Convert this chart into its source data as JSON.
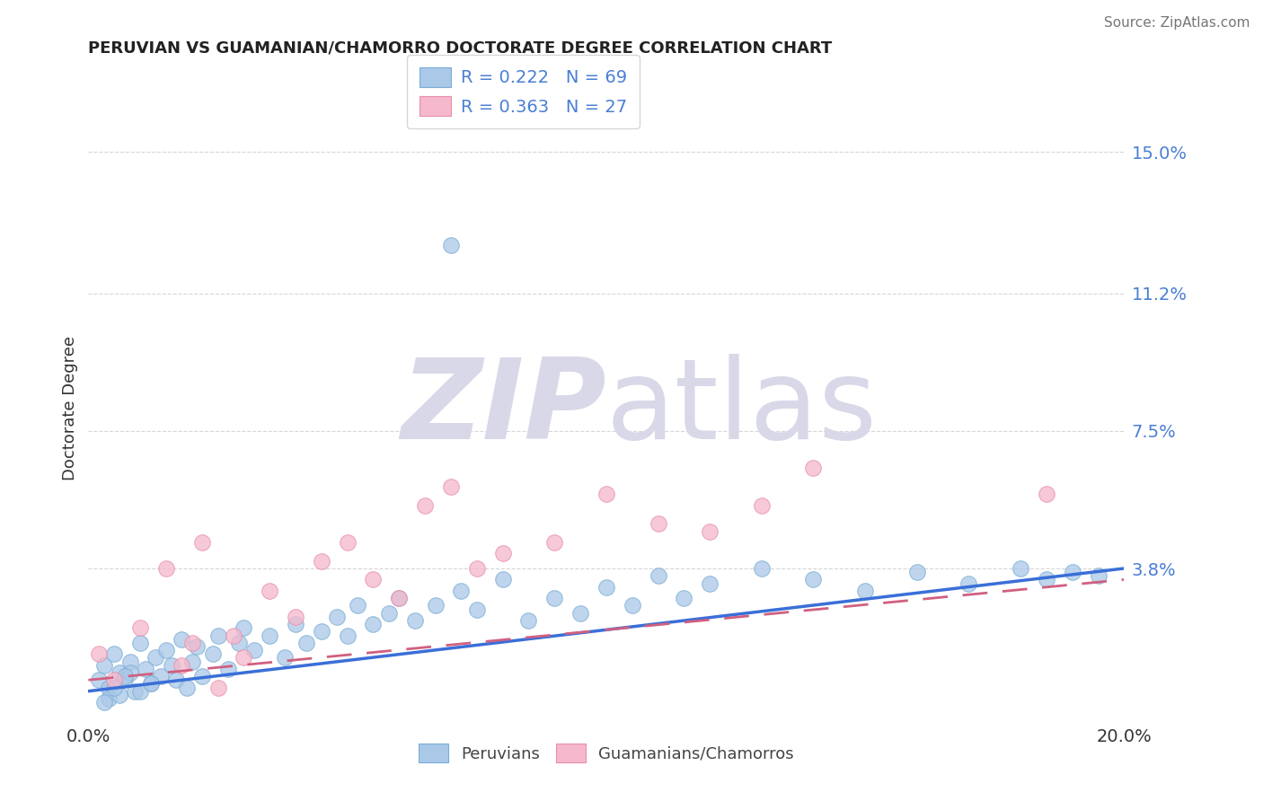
{
  "title": "PERUVIAN VS GUAMANIAN/CHAMORRO DOCTORATE DEGREE CORRELATION CHART",
  "source": "Source: ZipAtlas.com",
  "ylabel": "Doctorate Degree",
  "xlim": [
    0.0,
    20.0
  ],
  "ylim": [
    -0.3,
    16.5
  ],
  "yticks": [
    3.8,
    7.5,
    11.2,
    15.0
  ],
  "peruvian_color": "#aac8e8",
  "peruvian_edge": "#7aaed4",
  "guamanian_color": "#f5b8cc",
  "guamanian_edge": "#e890aa",
  "peruvian_line_color": "#3a6fd8",
  "guamanian_line_color": "#d06080",
  "watermark_color": "#d8d8e8",
  "title_color": "#222222",
  "tick_color": "#4a7fd4",
  "grid_color": "#cccccc",
  "legend_text_color": "#4a7fd4",
  "peruvian_x": [
    0.2,
    0.3,
    0.4,
    0.5,
    0.6,
    0.7,
    0.8,
    0.9,
    1.0,
    1.1,
    1.2,
    1.3,
    1.4,
    1.5,
    1.6,
    1.7,
    1.8,
    1.9,
    2.0,
    2.1,
    2.2,
    2.4,
    2.5,
    2.7,
    2.9,
    3.0,
    3.2,
    3.5,
    3.8,
    4.0,
    4.2,
    4.5,
    4.8,
    5.0,
    5.2,
    5.5,
    5.8,
    6.0,
    6.3,
    6.7,
    7.0,
    7.2,
    7.5,
    8.0,
    8.5,
    9.0,
    9.5,
    10.0,
    10.5,
    11.0,
    11.5,
    12.0,
    13.0,
    14.0,
    15.0,
    16.0,
    17.0,
    18.0,
    18.5,
    19.0,
    19.5,
    0.4,
    0.6,
    0.8,
    1.0,
    1.2,
    0.3,
    0.5,
    0.7
  ],
  "peruvian_y": [
    0.8,
    1.2,
    0.6,
    1.5,
    1.0,
    0.8,
    1.3,
    0.5,
    1.8,
    1.1,
    0.7,
    1.4,
    0.9,
    1.6,
    1.2,
    0.8,
    1.9,
    0.6,
    1.3,
    1.7,
    0.9,
    1.5,
    2.0,
    1.1,
    1.8,
    2.2,
    1.6,
    2.0,
    1.4,
    2.3,
    1.8,
    2.1,
    2.5,
    2.0,
    2.8,
    2.3,
    2.6,
    3.0,
    2.4,
    2.8,
    12.5,
    3.2,
    2.7,
    3.5,
    2.4,
    3.0,
    2.6,
    3.3,
    2.8,
    3.6,
    3.0,
    3.4,
    3.8,
    3.5,
    3.2,
    3.7,
    3.4,
    3.8,
    3.5,
    3.7,
    3.6,
    0.3,
    0.4,
    1.0,
    0.5,
    0.7,
    0.2,
    0.6,
    0.9
  ],
  "guamanian_x": [
    0.2,
    0.5,
    1.0,
    1.5,
    1.8,
    2.0,
    2.2,
    2.5,
    2.8,
    3.0,
    3.5,
    4.0,
    4.5,
    5.0,
    5.5,
    6.0,
    6.5,
    7.0,
    7.5,
    8.0,
    9.0,
    10.0,
    11.0,
    12.0,
    13.0,
    14.0,
    18.5
  ],
  "guamanian_y": [
    1.5,
    0.8,
    2.2,
    3.8,
    1.2,
    1.8,
    4.5,
    0.6,
    2.0,
    1.4,
    3.2,
    2.5,
    4.0,
    4.5,
    3.5,
    3.0,
    5.5,
    6.0,
    3.8,
    4.2,
    4.5,
    5.8,
    5.0,
    4.8,
    5.5,
    6.5,
    5.8
  ]
}
